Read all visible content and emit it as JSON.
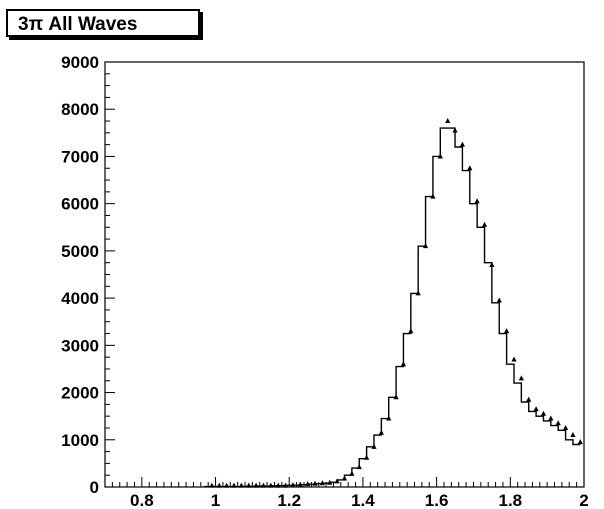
{
  "chart_data": {
    "type": "line",
    "title": "3π All Waves",
    "xlabel": "",
    "ylabel": "",
    "xlim": [
      0.7,
      2.0
    ],
    "ylim": [
      0,
      9000
    ],
    "x_ticks": [
      "0.8",
      "1",
      "1.2",
      "1.4",
      "1.6",
      "1.8",
      "2"
    ],
    "y_ticks": [
      "0",
      "1000",
      "2000",
      "3000",
      "4000",
      "5000",
      "6000",
      "7000",
      "8000",
      "9000"
    ],
    "grid": false,
    "legend": "none",
    "bin_width": 0.02,
    "series": [
      {
        "kind": "histogram",
        "x": [
          0.98,
          1.0,
          1.02,
          1.04,
          1.06,
          1.08,
          1.1,
          1.12,
          1.14,
          1.16,
          1.18,
          1.2,
          1.22,
          1.24,
          1.26,
          1.28,
          1.3,
          1.32,
          1.34,
          1.36,
          1.38,
          1.4,
          1.42,
          1.44,
          1.46,
          1.48,
          1.5,
          1.52,
          1.54,
          1.56,
          1.58,
          1.6,
          1.62,
          1.64,
          1.66,
          1.68,
          1.7,
          1.72,
          1.74,
          1.76,
          1.78,
          1.8,
          1.82,
          1.84,
          1.86,
          1.88,
          1.9,
          1.92,
          1.94,
          1.96,
          1.98
        ],
        "values": [
          10,
          10,
          10,
          10,
          10,
          15,
          15,
          20,
          20,
          25,
          30,
          35,
          40,
          50,
          60,
          70,
          80,
          100,
          150,
          250,
          400,
          600,
          850,
          1100,
          1450,
          1900,
          2550,
          3250,
          4100,
          5100,
          6150,
          7000,
          7600,
          7600,
          7200,
          6700,
          6000,
          5500,
          4750,
          3900,
          3250,
          2600,
          2200,
          1800,
          1600,
          1500,
          1400,
          1300,
          1200,
          1000,
          900
        ]
      },
      {
        "kind": "points",
        "x": [
          0.99,
          1.01,
          1.03,
          1.05,
          1.07,
          1.09,
          1.11,
          1.13,
          1.15,
          1.17,
          1.19,
          1.21,
          1.23,
          1.25,
          1.27,
          1.29,
          1.31,
          1.33,
          1.35,
          1.37,
          1.39,
          1.41,
          1.43,
          1.45,
          1.47,
          1.49,
          1.51,
          1.53,
          1.55,
          1.57,
          1.59,
          1.61,
          1.63,
          1.65,
          1.67,
          1.69,
          1.71,
          1.73,
          1.75,
          1.77,
          1.79,
          1.81,
          1.83,
          1.85,
          1.87,
          1.89,
          1.91,
          1.93,
          1.95,
          1.97,
          1.99
        ],
        "values": [
          30,
          30,
          30,
          30,
          30,
          30,
          30,
          30,
          30,
          30,
          30,
          40,
          50,
          60,
          70,
          80,
          90,
          120,
          180,
          280,
          420,
          620,
          850,
          1150,
          1450,
          1900,
          2600,
          3300,
          4100,
          5100,
          6150,
          7000,
          7750,
          7550,
          7250,
          6750,
          6050,
          5550,
          4700,
          3950,
          3300,
          2700,
          2300,
          1850,
          1650,
          1550,
          1450,
          1350,
          1250,
          1100,
          950
        ]
      }
    ]
  }
}
